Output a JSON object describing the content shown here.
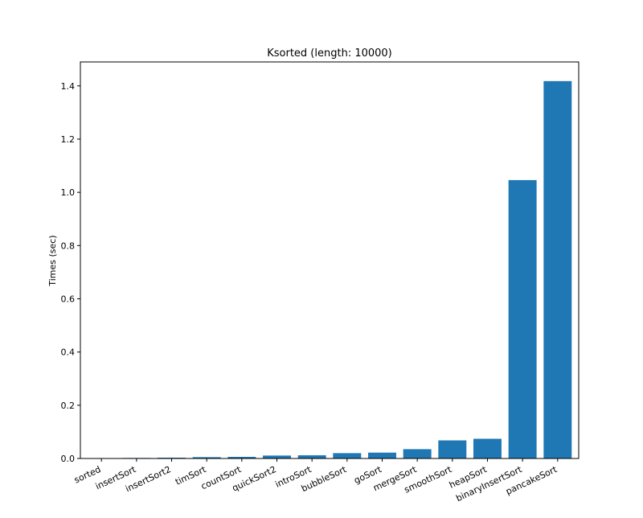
{
  "chart_data": {
    "type": "bar",
    "title": "Ksorted (length: 10000)",
    "xlabel": "",
    "ylabel": "Times (sec)",
    "categories": [
      "sorted",
      "insertSort",
      "insertSort2",
      "timSort",
      "countSort",
      "quickSort2",
      "introSort",
      "bubbleSort",
      "goSort",
      "mergeSort",
      "smoothSort",
      "heapSort",
      "binaryInsertSort",
      "pancakeSort"
    ],
    "values": [
      0.0005,
      0.002,
      0.003,
      0.005,
      0.006,
      0.011,
      0.012,
      0.02,
      0.022,
      0.035,
      0.068,
      0.074,
      1.046,
      1.418
    ],
    "ylim": [
      0,
      1.49
    ],
    "yticks": [
      "0.0",
      "0.2",
      "0.4",
      "0.6",
      "0.8",
      "1.0",
      "1.2",
      "1.4"
    ],
    "grid": false,
    "bar_color": "#1f77b4"
  }
}
